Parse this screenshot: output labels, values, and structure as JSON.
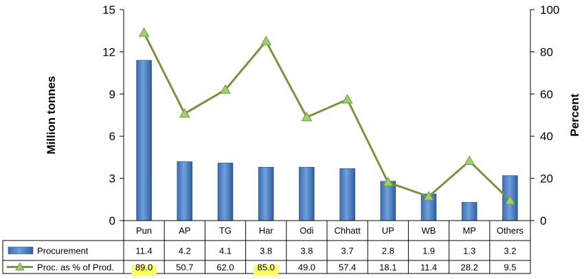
{
  "chart_data": {
    "type": "bar",
    "categories": [
      "Pun",
      "AP",
      "TG",
      "Har",
      "Odi",
      "Chhatt",
      "UP",
      "WB",
      "MP",
      "Others"
    ],
    "series": [
      {
        "name": "Procurement",
        "type": "bar",
        "axis": "left",
        "color": "#4f81bd",
        "values": [
          11.4,
          4.2,
          4.1,
          3.8,
          3.8,
          3.7,
          2.8,
          1.9,
          1.3,
          3.2
        ]
      },
      {
        "name": "Proc. as % of Prod.",
        "type": "line",
        "axis": "right",
        "color": "#77933c",
        "marker": "triangle",
        "marker_color": "#9bd16b",
        "values": [
          89.0,
          50.7,
          62.0,
          85.0,
          49.0,
          57.4,
          18.1,
          11.4,
          28.2,
          9.5
        ]
      }
    ],
    "table": {
      "rows": [
        {
          "legend": "Procurement",
          "cells": [
            "11.4",
            "4.2",
            "4.1",
            "3.8",
            "3.8",
            "3.7",
            "2.8",
            "1.9",
            "1.3",
            "3.2"
          ]
        },
        {
          "legend": "Proc. as % of Prod.",
          "cells": [
            "89.0",
            "50.7",
            "62.0",
            "85.0",
            "49.0",
            "57.4",
            "18.1",
            "11.4",
            "28.2",
            "9.5"
          ]
        }
      ],
      "highlighted_cells": [
        {
          "row": 1,
          "col": 0
        },
        {
          "row": 1,
          "col": 3
        }
      ],
      "highlight_color": "#ffff66"
    },
    "y_left": {
      "label": "Million tonnes",
      "ylim": [
        0,
        15
      ],
      "ticks": [
        "0",
        "3",
        "6",
        "9",
        "12",
        "15"
      ]
    },
    "y_right": {
      "label": "Percent",
      "ylim": [
        0,
        100
      ],
      "ticks": [
        "0",
        "20",
        "40",
        "60",
        "80",
        "100"
      ]
    },
    "grid": false,
    "legend": "data-table"
  }
}
